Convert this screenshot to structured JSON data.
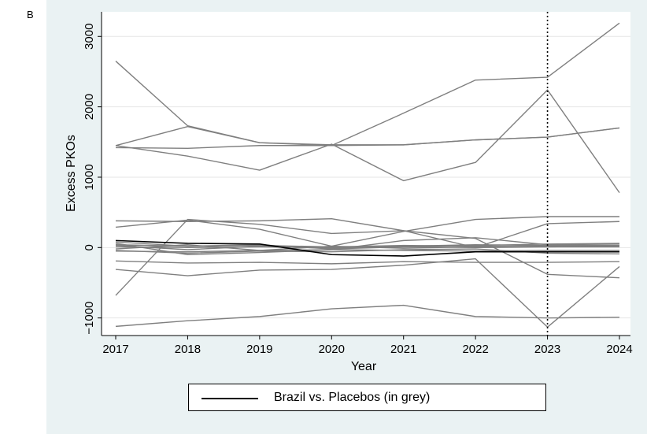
{
  "panel_label": "B",
  "chart_data": {
    "type": "line",
    "xlabel": "Year",
    "ylabel": "Excess PKOs",
    "x": [
      2017,
      2018,
      2019,
      2020,
      2021,
      2022,
      2023,
      2024
    ],
    "xlim": [
      2017,
      2024
    ],
    "ylim": [
      -1250,
      3350
    ],
    "yticks": [
      -1000,
      0,
      1000,
      2000,
      3000
    ],
    "ytick_labels": [
      "−1000",
      "0",
      "1000",
      "2000",
      "3000"
    ],
    "grid": true,
    "vline": 2023,
    "legend": {
      "position": "bottom",
      "label": "Brazil vs. Placebos (in grey)"
    },
    "series": [
      {
        "name": "Brazil",
        "color": "#000000",
        "values": [
          100,
          60,
          50,
          -100,
          -120,
          -60,
          -60,
          -60
        ]
      },
      {
        "color": "#7f7f7f",
        "values": [
          1450,
          1300,
          1100,
          1470,
          950,
          1210,
          2240,
          780
        ]
      },
      {
        "color": "#7f7f7f",
        "values": [
          1450,
          1720,
          1490,
          1450,
          1910,
          2380,
          2420,
          3190
        ]
      },
      {
        "color": "#7f7f7f",
        "values": [
          1420,
          1410,
          1450,
          1450,
          1460,
          1530,
          1570,
          1700
        ]
      },
      {
        "color": "#7f7f7f",
        "values": [
          2650,
          1730,
          1490,
          1460,
          1460,
          1530,
          1570,
          1700
        ]
      },
      {
        "color": "#7f7f7f",
        "values": [
          380,
          370,
          380,
          410,
          240,
          130,
          -380,
          -430
        ]
      },
      {
        "color": "#7f7f7f",
        "values": [
          290,
          390,
          260,
          20,
          230,
          400,
          440,
          440
        ]
      },
      {
        "color": "#7f7f7f",
        "values": [
          -680,
          400,
          330,
          200,
          240,
          0,
          340,
          370
        ]
      },
      {
        "color": "#7f7f7f",
        "values": [
          -1120,
          -1040,
          -980,
          -870,
          -820,
          -980,
          -1000,
          -990
        ]
      },
      {
        "color": "#7f7f7f",
        "values": [
          -310,
          -400,
          -320,
          -310,
          -250,
          -160,
          -1130,
          -270
        ]
      },
      {
        "color": "#7f7f7f",
        "values": [
          -190,
          -220,
          -210,
          -230,
          -200,
          -210,
          -210,
          -200
        ]
      },
      {
        "color": "#7f7f7f",
        "values": [
          60,
          -100,
          -70,
          -30,
          100,
          140,
          40,
          50
        ]
      },
      {
        "color": "#7f7f7f",
        "values": [
          30,
          -30,
          20,
          -10,
          20,
          40,
          30,
          30
        ]
      },
      {
        "color": "#7f7f7f",
        "values": [
          -20,
          40,
          -40,
          20,
          -10,
          10,
          20,
          20
        ]
      },
      {
        "color": "#7f7f7f",
        "values": [
          10,
          0,
          10,
          0,
          10,
          0,
          10,
          10
        ]
      },
      {
        "color": "#7f7f7f",
        "values": [
          -50,
          -60,
          -40,
          -30,
          -40,
          -50,
          -40,
          -40
        ]
      },
      {
        "color": "#7f7f7f",
        "values": [
          40,
          20,
          30,
          10,
          30,
          20,
          10,
          20
        ]
      },
      {
        "color": "#7f7f7f",
        "values": [
          -40,
          -80,
          -50,
          -60,
          -30,
          -20,
          -80,
          -90
        ]
      },
      {
        "color": "#7f7f7f",
        "values": [
          80,
          20,
          40,
          -20,
          10,
          30,
          50,
          60
        ]
      }
    ]
  }
}
